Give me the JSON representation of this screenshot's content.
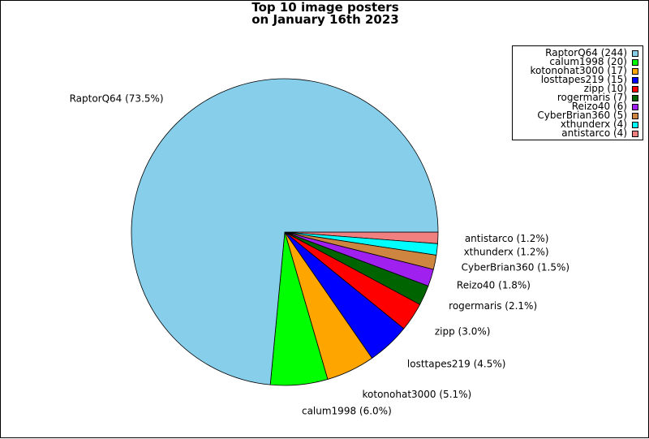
{
  "chart_data": {
    "type": "pie",
    "title_lines": [
      "Top 10 image posters",
      "on January 16th 2023"
    ],
    "legend_placement": "top-right",
    "slices": [
      {
        "name": "RaptorQ64",
        "value": 244,
        "percent": 73.5,
        "legend": "RaptorQ64 (244)",
        "label": "RaptorQ64 (73.5%)",
        "color": "#87CEEB"
      },
      {
        "name": "calum1998",
        "value": 20,
        "percent": 6.0,
        "legend": "calum1998 (20)",
        "label": "calum1998 (6.0%)",
        "color": "#00FF00"
      },
      {
        "name": "kotonohat3000",
        "value": 17,
        "percent": 5.1,
        "legend": "kotonohat3000 (17)",
        "label": "kotonohat3000 (5.1%)",
        "color": "#FFA500"
      },
      {
        "name": "losttapes219",
        "value": 15,
        "percent": 4.5,
        "legend": "losttapes219 (15)",
        "label": "losttapes219 (4.5%)",
        "color": "#0000FF"
      },
      {
        "name": "zipp",
        "value": 10,
        "percent": 3.0,
        "legend": "zipp (10)",
        "label": "zipp (3.0%)",
        "color": "#FF0000"
      },
      {
        "name": "rogermaris",
        "value": 7,
        "percent": 2.1,
        "legend": "rogermaris (7)",
        "label": "rogermaris (2.1%)",
        "color": "#006400"
      },
      {
        "name": "Reizo40",
        "value": 6,
        "percent": 1.8,
        "legend": "Reizo40 (6)",
        "label": "Reizo40 (1.8%)",
        "color": "#A020F0"
      },
      {
        "name": "CyberBrian360",
        "value": 5,
        "percent": 1.5,
        "legend": "CyberBrian360 (5)",
        "label": "CyberBrian360 (1.5%)",
        "color": "#CD853F"
      },
      {
        "name": "xthunderx",
        "value": 4,
        "percent": 1.2,
        "legend": "xthunderx (4)",
        "label": "xthunderx (1.2%)",
        "color": "#00FFFF"
      },
      {
        "name": "antistarco",
        "value": 4,
        "percent": 1.2,
        "legend": "antistarco (4)",
        "label": "antistarco (1.2%)",
        "color": "#F08080"
      }
    ]
  }
}
